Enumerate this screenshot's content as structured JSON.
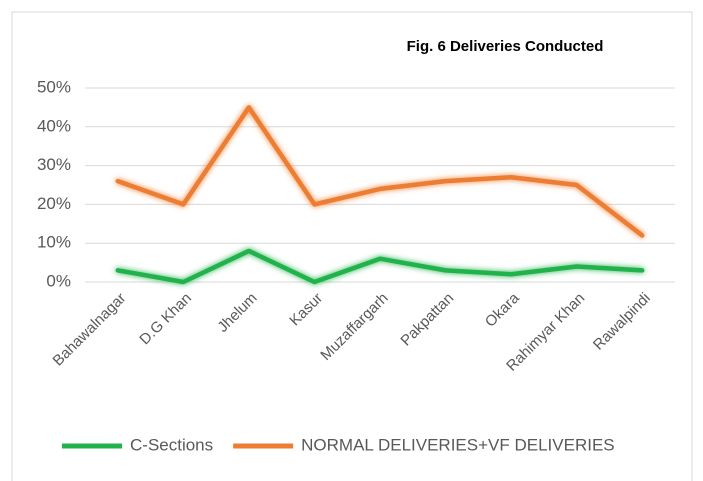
{
  "chart_data": {
    "type": "line",
    "title": "Fig. 6 Deliveries Conducted",
    "categories": [
      "Bahawalnagar",
      "D.G Khan",
      "Jhelum",
      "Kasur",
      "Muzaffargarh",
      "Pakpattan",
      "Okara",
      "Rahimyar Khan",
      "Rawalpindi"
    ],
    "series": [
      {
        "name": "C-Sections",
        "color": "#21b24b",
        "values": [
          3,
          0,
          8,
          0,
          6,
          3,
          2,
          4,
          3
        ]
      },
      {
        "name": "NORMAL DELIVERIES+VF DELIVERIES",
        "color": "#ed7d31",
        "values": [
          26,
          20,
          45,
          20,
          24,
          26,
          27,
          25,
          12
        ]
      }
    ],
    "ylim": [
      0,
      50
    ],
    "yticks": [
      {
        "value": 0,
        "label": "0%"
      },
      {
        "value": 10,
        "label": "10%"
      },
      {
        "value": 20,
        "label": "20%"
      },
      {
        "value": 30,
        "label": "30%"
      },
      {
        "value": 40,
        "label": "40%"
      },
      {
        "value": 50,
        "label": "50%"
      }
    ],
    "grid": true,
    "legend": "bottom"
  }
}
